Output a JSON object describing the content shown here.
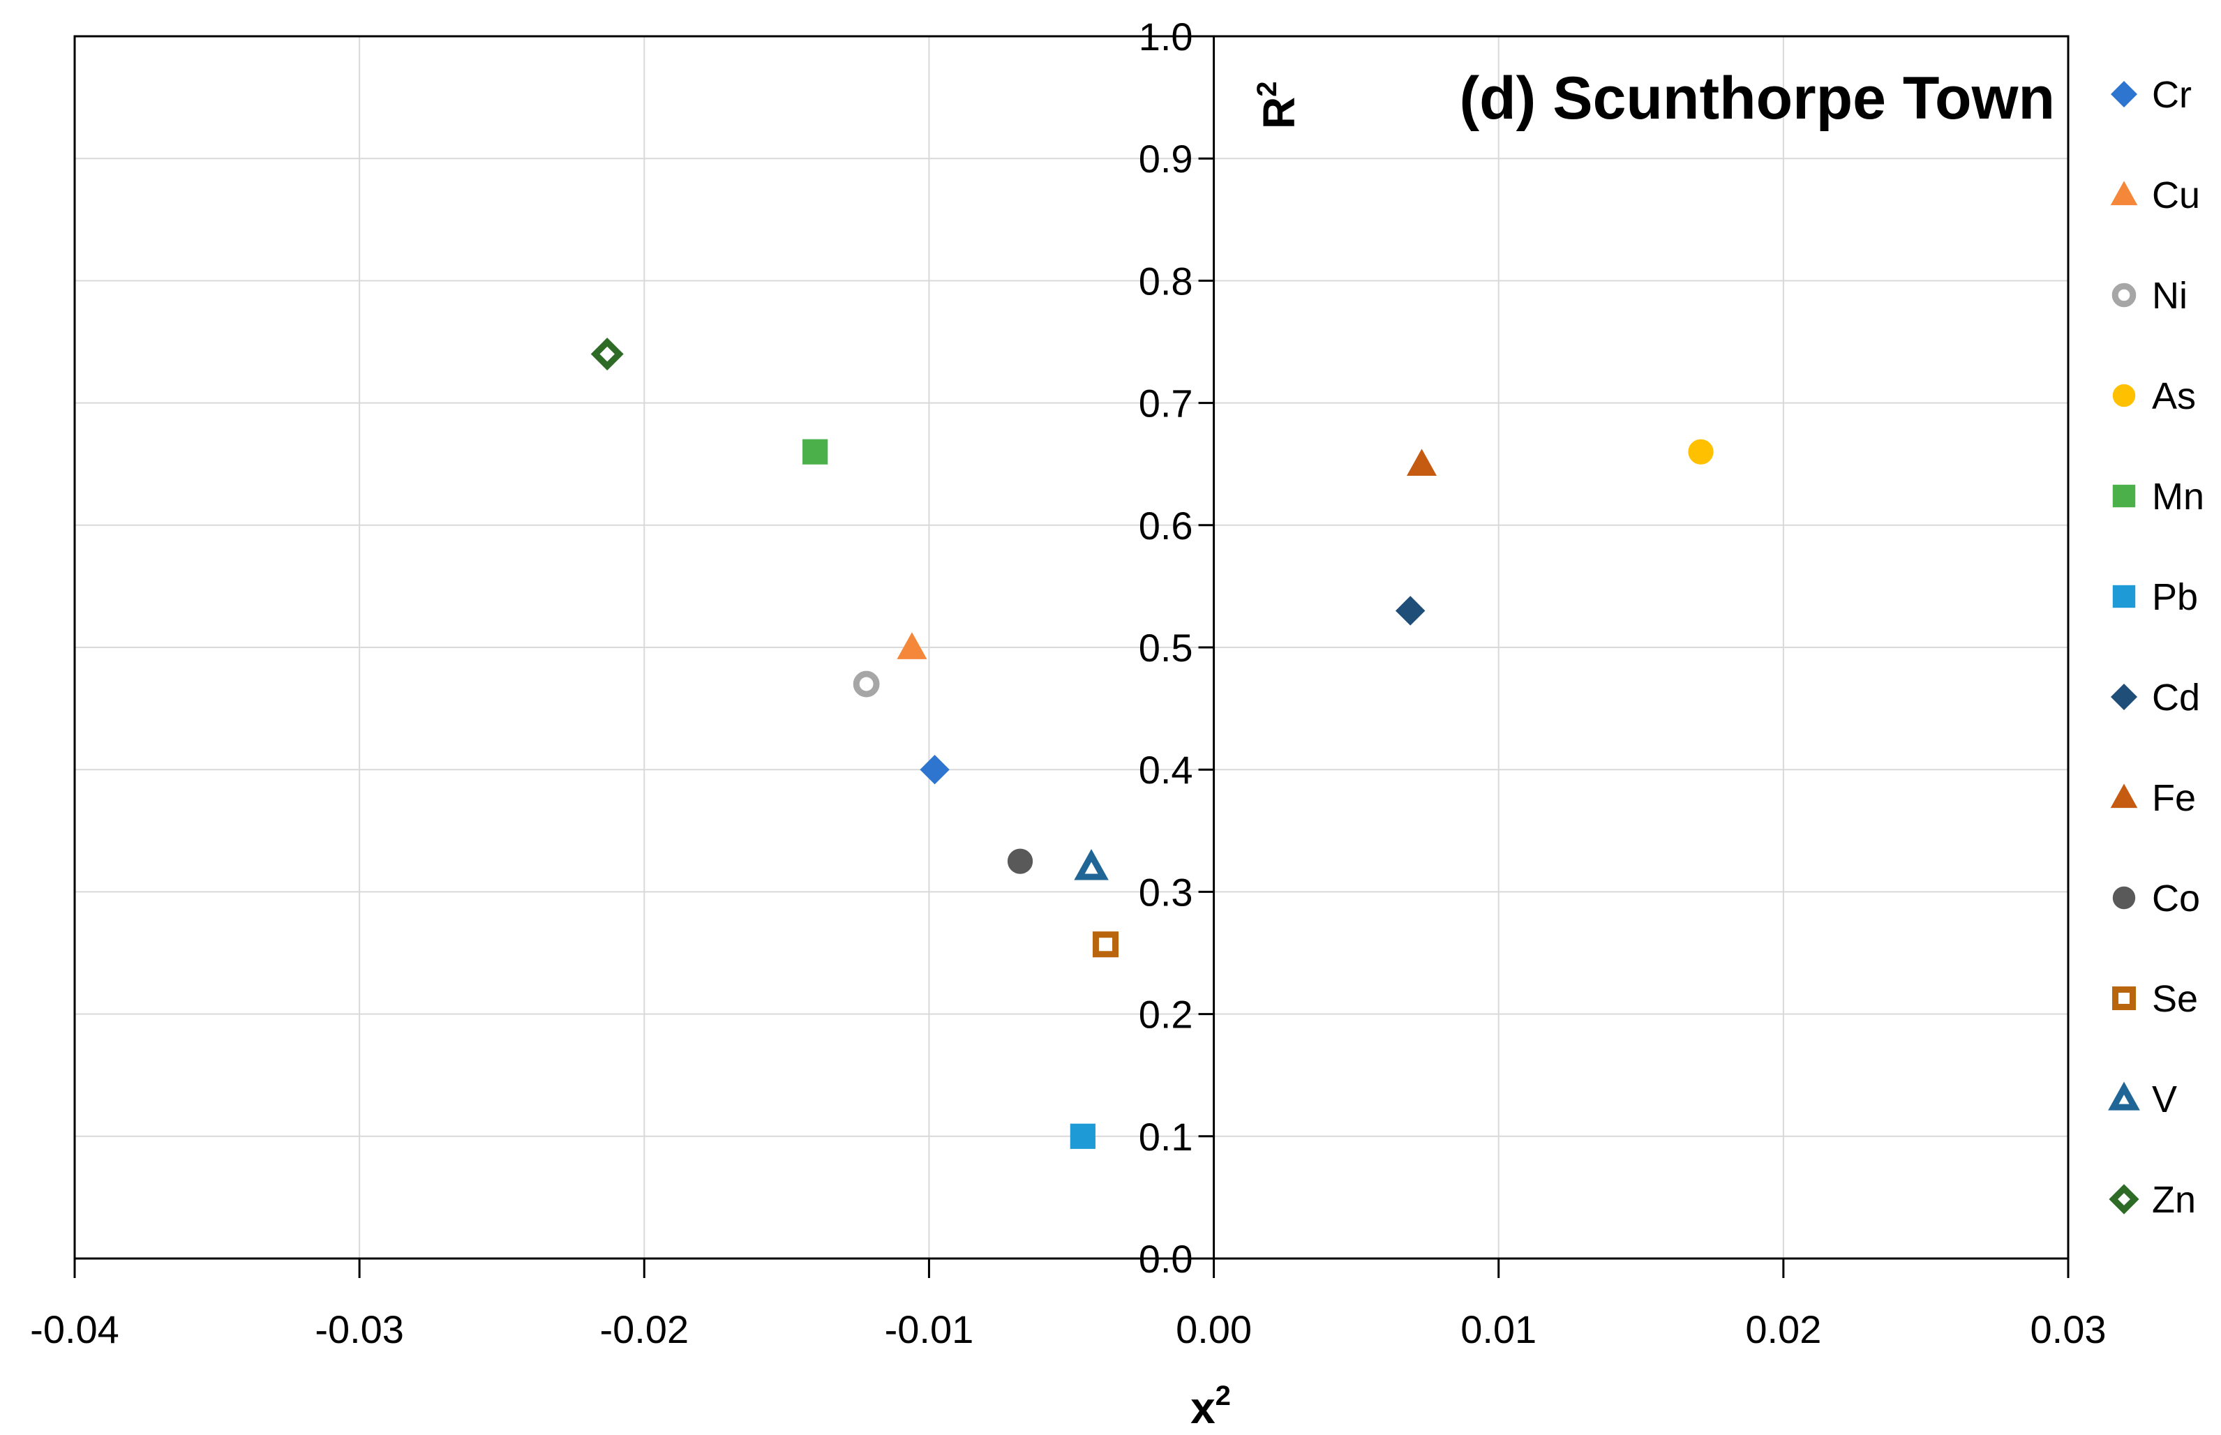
{
  "chart_data": {
    "type": "scatter",
    "title": "(d) Scunthorpe Town",
    "xlabel": "x",
    "xlabel_sup": "2",
    "ylabel": "R",
    "ylabel_sup": "2",
    "xlim": [
      -0.04,
      0.03
    ],
    "ylim": [
      0.0,
      1.0
    ],
    "x_ticks": [
      "-0.04",
      "-0.03",
      "-0.02",
      "-0.01",
      "0.00",
      "0.01",
      "0.02",
      "0.03"
    ],
    "y_ticks": [
      "0.0",
      "0.1",
      "0.2",
      "0.3",
      "0.4",
      "0.5",
      "0.6",
      "0.7",
      "0.8",
      "0.9",
      "1.0"
    ],
    "grid": true,
    "legend_position": "right",
    "series": [
      {
        "name": "Cr",
        "x": -0.0098,
        "y": 0.4,
        "marker": "diamond",
        "color": "#2E75D0",
        "filled": true
      },
      {
        "name": "Cu",
        "x": -0.0106,
        "y": 0.5,
        "marker": "triangle",
        "color": "#F5873A",
        "filled": true
      },
      {
        "name": "Ni",
        "x": -0.0122,
        "y": 0.47,
        "marker": "circle",
        "color": "#A6A6A6",
        "filled": false
      },
      {
        "name": "As",
        "x": 0.0171,
        "y": 0.66,
        "marker": "circle",
        "color": "#FFC000",
        "filled": true
      },
      {
        "name": "Mn",
        "x": -0.014,
        "y": 0.66,
        "marker": "square",
        "color": "#4CB04A",
        "filled": true
      },
      {
        "name": "Pb",
        "x": -0.0046,
        "y": 0.1,
        "marker": "square",
        "color": "#1E9BD7",
        "filled": true
      },
      {
        "name": "Cd",
        "x": 0.0069,
        "y": 0.53,
        "marker": "diamond",
        "color": "#1F4E79",
        "filled": true
      },
      {
        "name": "Fe",
        "x": 0.0073,
        "y": 0.65,
        "marker": "triangle",
        "color": "#C55A11",
        "filled": true
      },
      {
        "name": "Co",
        "x": -0.0068,
        "y": 0.325,
        "marker": "circle",
        "color": "#595959",
        "filled": true
      },
      {
        "name": "Se",
        "x": -0.0038,
        "y": 0.257,
        "marker": "square",
        "color": "#B8650E",
        "filled": false
      },
      {
        "name": "V",
        "x": -0.0043,
        "y": 0.32,
        "marker": "triangle",
        "color": "#1F6696",
        "filled": false
      },
      {
        "name": "Zn",
        "x": -0.0213,
        "y": 0.74,
        "marker": "diamond",
        "color": "#2E6B26",
        "filled": false
      }
    ]
  }
}
